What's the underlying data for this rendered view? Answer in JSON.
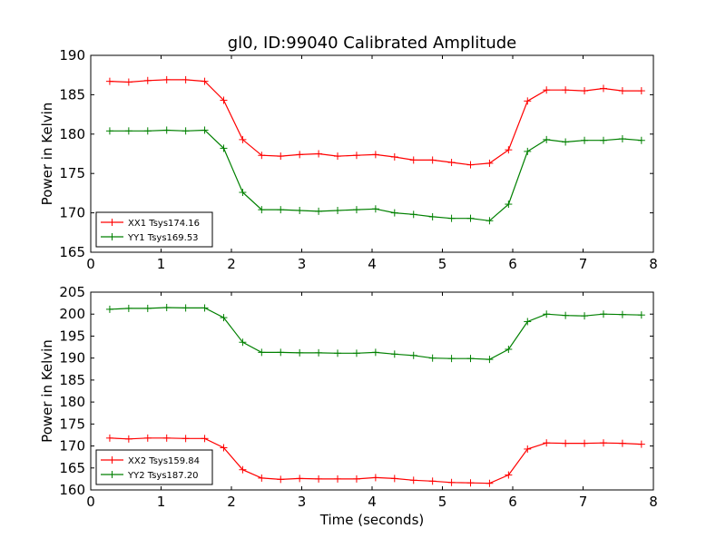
{
  "figure": {
    "title": "gl0, ID:99040 Calibrated Amplitude",
    "xlabel": "Time (seconds)"
  },
  "chart_data": [
    {
      "type": "line",
      "ylabel": "Power in Kelvin",
      "xlim": [
        0,
        8
      ],
      "ylim": [
        165,
        190
      ],
      "xticks": [
        0,
        1,
        2,
        3,
        4,
        5,
        6,
        7,
        8
      ],
      "yticks": [
        165,
        170,
        175,
        180,
        185,
        190
      ],
      "legend_position": "lower-left",
      "x": [
        0.27,
        0.54,
        0.81,
        1.08,
        1.35,
        1.62,
        1.89,
        2.16,
        2.43,
        2.7,
        2.97,
        3.24,
        3.51,
        3.78,
        4.05,
        4.32,
        4.59,
        4.86,
        5.13,
        5.4,
        5.67,
        5.94,
        6.21,
        6.48,
        6.75,
        7.02,
        7.29,
        7.56,
        7.83
      ],
      "series": [
        {
          "name": "XX1 Tsys174.16",
          "color": "#ff0000",
          "values": [
            186.7,
            186.6,
            186.8,
            186.9,
            186.9,
            186.7,
            184.3,
            179.3,
            177.3,
            177.2,
            177.4,
            177.5,
            177.2,
            177.3,
            177.4,
            177.1,
            176.7,
            176.7,
            176.4,
            176.1,
            176.3,
            178.0,
            184.2,
            185.6,
            185.6,
            185.5,
            185.8,
            185.5,
            185.5
          ]
        },
        {
          "name": "YY1 Tsys169.53",
          "color": "#008000",
          "values": [
            180.4,
            180.4,
            180.4,
            180.5,
            180.4,
            180.5,
            178.2,
            172.6,
            170.4,
            170.4,
            170.3,
            170.2,
            170.3,
            170.4,
            170.5,
            170.0,
            169.8,
            169.5,
            169.3,
            169.3,
            169.0,
            171.1,
            177.8,
            179.3,
            179.0,
            179.2,
            179.2,
            179.4,
            179.2
          ]
        }
      ]
    },
    {
      "type": "line",
      "ylabel": "Power in Kelvin",
      "xlabel": "Time (seconds)",
      "xlim": [
        0,
        8
      ],
      "ylim": [
        160,
        205
      ],
      "xticks": [
        0,
        1,
        2,
        3,
        4,
        5,
        6,
        7,
        8
      ],
      "yticks": [
        160,
        165,
        170,
        175,
        180,
        185,
        190,
        195,
        200,
        205
      ],
      "legend_position": "lower-left",
      "x": [
        0.27,
        0.54,
        0.81,
        1.08,
        1.35,
        1.62,
        1.89,
        2.16,
        2.43,
        2.7,
        2.97,
        3.24,
        3.51,
        3.78,
        4.05,
        4.32,
        4.59,
        4.86,
        5.13,
        5.4,
        5.67,
        5.94,
        6.21,
        6.48,
        6.75,
        7.02,
        7.29,
        7.56,
        7.83
      ],
      "series": [
        {
          "name": "XX2 Tsys159.84",
          "color": "#ff0000",
          "values": [
            171.8,
            171.6,
            171.8,
            171.8,
            171.7,
            171.7,
            169.6,
            164.6,
            162.7,
            162.4,
            162.6,
            162.5,
            162.5,
            162.5,
            162.8,
            162.6,
            162.2,
            162.0,
            161.7,
            161.6,
            161.5,
            163.4,
            169.3,
            170.7,
            170.6,
            170.6,
            170.7,
            170.6,
            170.4
          ]
        },
        {
          "name": "YY2 Tsys187.20",
          "color": "#008000",
          "values": [
            201.1,
            201.3,
            201.3,
            201.5,
            201.4,
            201.4,
            199.2,
            193.6,
            191.3,
            191.3,
            191.2,
            191.2,
            191.1,
            191.1,
            191.3,
            190.9,
            190.6,
            190.0,
            189.9,
            189.9,
            189.7,
            192.0,
            198.3,
            200.0,
            199.7,
            199.6,
            200.0,
            199.9,
            199.8
          ]
        }
      ]
    }
  ]
}
